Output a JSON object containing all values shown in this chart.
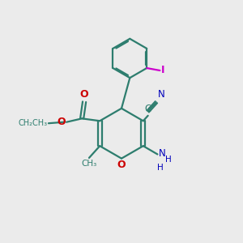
{
  "background_color": "#ebebeb",
  "bond_color": "#2d7d6e",
  "oxygen_color": "#cc0000",
  "nitrogen_color": "#0000bb",
  "iodine_color": "#cc00cc",
  "figsize": [
    3.0,
    3.0
  ],
  "dpi": 100,
  "xlim": [
    0,
    10
  ],
  "ylim": [
    0,
    10
  ]
}
